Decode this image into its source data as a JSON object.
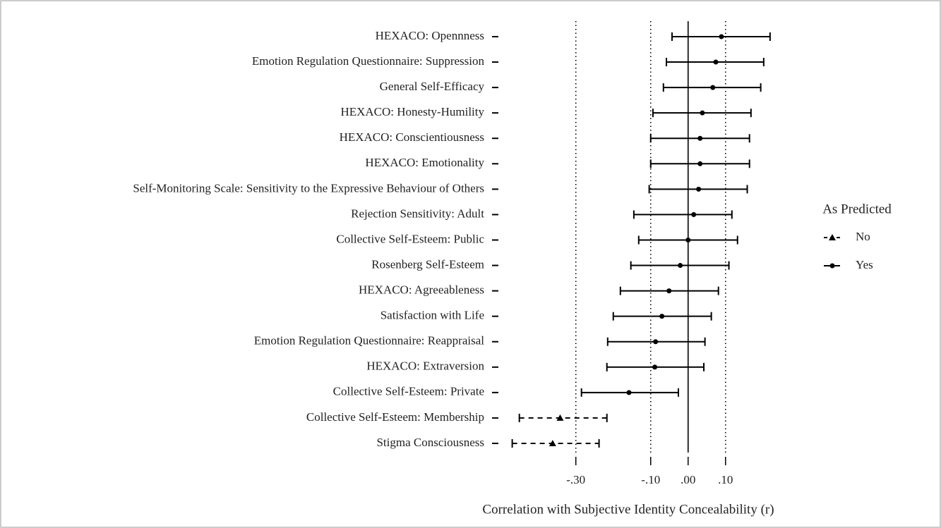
{
  "chart_data": {
    "type": "forest",
    "categories": [
      "HEXACO: Opennness",
      "Emotion Regulation Questionnaire: Suppression",
      "General Self-Efficacy",
      "HEXACO: Honesty-Humility",
      "HEXACO: Conscientiousness",
      "HEXACO: Emotionality",
      "Self-Monitoring Scale: Sensitivity to the Expressive Behaviour of Others",
      "Rejection Sensitivity: Adult",
      "Collective Self-Esteem: Public",
      "Rosenberg Self-Esteem",
      "HEXACO: Agreeableness",
      "Satisfaction with Life",
      "Emotion Regulation Questionnaire: Reappraisal",
      "HEXACO: Extraversion",
      "Collective Self-Esteem: Private",
      "Collective Self-Esteem: Membership",
      "Stigma Consciousness"
    ],
    "series": [
      {
        "name": "No",
        "color": "#000000",
        "marker": "triangle",
        "dashed": true,
        "values": [
          null,
          null,
          null,
          null,
          null,
          null,
          null,
          null,
          null,
          null,
          null,
          null,
          null,
          null,
          null,
          -0.342,
          -0.362
        ],
        "lower": [
          null,
          null,
          null,
          null,
          null,
          null,
          null,
          null,
          null,
          null,
          null,
          null,
          null,
          null,
          null,
          -0.451,
          -0.47
        ],
        "upper": [
          null,
          null,
          null,
          null,
          null,
          null,
          null,
          null,
          null,
          null,
          null,
          null,
          null,
          null,
          null,
          -0.217,
          -0.238
        ]
      },
      {
        "name": "Yes",
        "color": "#000000",
        "marker": "circle",
        "dashed": false,
        "values": [
          0.089,
          0.074,
          0.066,
          0.038,
          0.032,
          0.032,
          0.028,
          0.015,
          0.0,
          -0.021,
          -0.051,
          -0.07,
          -0.087,
          -0.089,
          -0.158,
          null,
          null
        ],
        "lower": [
          -0.043,
          -0.058,
          -0.066,
          -0.094,
          -0.1,
          -0.1,
          -0.104,
          -0.145,
          -0.132,
          -0.153,
          -0.181,
          -0.2,
          -0.215,
          -0.217,
          -0.285,
          null,
          null
        ],
        "upper": [
          0.219,
          0.202,
          0.194,
          0.168,
          0.164,
          0.164,
          0.158,
          0.117,
          0.132,
          0.109,
          0.081,
          0.062,
          0.045,
          0.042,
          -0.026,
          null,
          null
        ]
      }
    ],
    "xlabel": "Correlation with Subjective Identity Concealability (r)",
    "legend_title": "As Predicted",
    "xlim": [
      -0.49,
      0.24
    ],
    "xticks": [
      {
        "value": -0.3,
        "label": "-.30"
      },
      {
        "value": -0.1,
        "label": "-.10"
      },
      {
        "value": 0,
        "label": ".00"
      },
      {
        "value": 0.1,
        "label": ".10"
      }
    ],
    "grid": true,
    "legend": "right"
  }
}
